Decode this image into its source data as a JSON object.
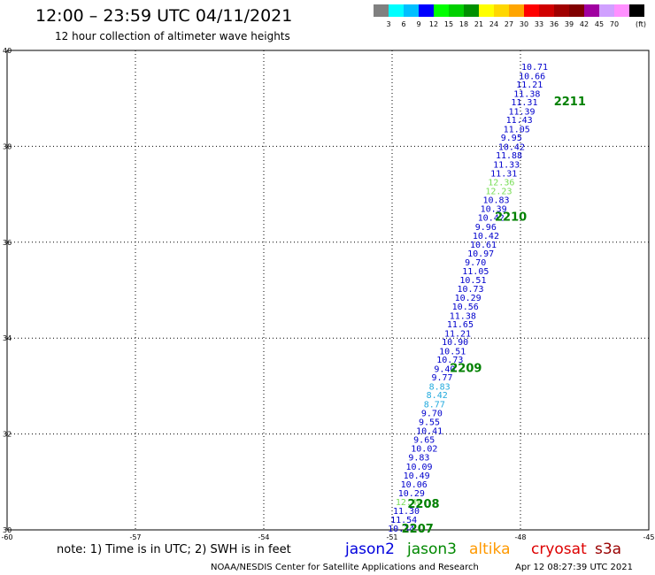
{
  "header": {
    "title": "12:00 – 23:59 UTC 04/11/2021",
    "subtitle": "12 hour collection of altimeter wave heights"
  },
  "colorbar": {
    "colors": [
      "#808080",
      "#00ffff",
      "#00bfff",
      "#0000ff",
      "#00ff00",
      "#00d000",
      "#009000",
      "#ffff00",
      "#ffd700",
      "#ffa500",
      "#ff0000",
      "#d00000",
      "#a00000",
      "#800000",
      "#a000a0",
      "#d0a0ff",
      "#ff90ff",
      "#000000"
    ],
    "labels": [
      "3",
      "6",
      "9",
      "12",
      "15",
      "18",
      "21",
      "24",
      "27",
      "30",
      "33",
      "36",
      "39",
      "42",
      "45",
      "70"
    ],
    "unit": "(ft)"
  },
  "chart_data": {
    "type": "scatter",
    "title": "12:00 – 23:59 UTC 04/11/2021",
    "subtitle": "12 hour collection of altimeter wave heights",
    "xlim": [
      -60,
      -45
    ],
    "ylim": [
      30,
      40
    ],
    "xticks": [
      "-60",
      "-57",
      "-54",
      "-51",
      "-48",
      "-45"
    ],
    "yticks": [
      "30",
      "32",
      "34",
      "36",
      "38",
      "40"
    ],
    "grid": true,
    "points": [
      {
        "lon": -51.1,
        "lat": 30.02,
        "value": "10.34",
        "color": "#0000cc"
      },
      {
        "lon": -51.04,
        "lat": 30.2,
        "value": "11.54",
        "color": "#0000cc"
      },
      {
        "lon": -50.98,
        "lat": 30.39,
        "value": "11.30",
        "color": "#0000cc"
      },
      {
        "lon": -50.92,
        "lat": 30.57,
        "value": "12.40",
        "color": "#77dd55"
      },
      {
        "lon": -50.86,
        "lat": 30.76,
        "value": "10.29",
        "color": "#0000cc"
      },
      {
        "lon": -50.8,
        "lat": 30.94,
        "value": "10.06",
        "color": "#0000cc"
      },
      {
        "lon": -50.74,
        "lat": 31.13,
        "value": "10.49",
        "color": "#0000cc"
      },
      {
        "lon": -50.68,
        "lat": 31.31,
        "value": "10.09",
        "color": "#0000cc"
      },
      {
        "lon": -50.62,
        "lat": 31.5,
        "value": "9.83",
        "color": "#0000cc"
      },
      {
        "lon": -50.56,
        "lat": 31.69,
        "value": "10.02",
        "color": "#0000cc"
      },
      {
        "lon": -50.5,
        "lat": 31.87,
        "value": "9.65",
        "color": "#0000cc"
      },
      {
        "lon": -50.44,
        "lat": 32.06,
        "value": "10.41",
        "color": "#0000cc"
      },
      {
        "lon": -50.38,
        "lat": 32.24,
        "value": "9.55",
        "color": "#0000cc"
      },
      {
        "lon": -50.32,
        "lat": 32.43,
        "value": "9.70",
        "color": "#0000cc"
      },
      {
        "lon": -50.26,
        "lat": 32.61,
        "value": "8.77",
        "color": "#22aadd"
      },
      {
        "lon": -50.2,
        "lat": 32.8,
        "value": "8.42",
        "color": "#22aadd"
      },
      {
        "lon": -50.14,
        "lat": 32.98,
        "value": "8.83",
        "color": "#22aadd"
      },
      {
        "lon": -50.08,
        "lat": 33.17,
        "value": "9.77",
        "color": "#0000cc"
      },
      {
        "lon": -50.02,
        "lat": 33.35,
        "value": "9.40",
        "color": "#0000cc"
      },
      {
        "lon": -49.96,
        "lat": 33.54,
        "value": "10.73",
        "color": "#0000cc"
      },
      {
        "lon": -49.9,
        "lat": 33.72,
        "value": "10.51",
        "color": "#0000cc"
      },
      {
        "lon": -49.84,
        "lat": 33.91,
        "value": "10.90",
        "color": "#0000cc"
      },
      {
        "lon": -49.78,
        "lat": 34.09,
        "value": "11.21",
        "color": "#0000cc"
      },
      {
        "lon": -49.72,
        "lat": 34.28,
        "value": "11.65",
        "color": "#0000cc"
      },
      {
        "lon": -49.66,
        "lat": 34.46,
        "value": "11.38",
        "color": "#0000cc"
      },
      {
        "lon": -49.6,
        "lat": 34.65,
        "value": "10.56",
        "color": "#0000cc"
      },
      {
        "lon": -49.54,
        "lat": 34.83,
        "value": "10.29",
        "color": "#0000cc"
      },
      {
        "lon": -49.48,
        "lat": 35.02,
        "value": "10.73",
        "color": "#0000cc"
      },
      {
        "lon": -49.42,
        "lat": 35.2,
        "value": "10.51",
        "color": "#0000cc"
      },
      {
        "lon": -49.36,
        "lat": 35.39,
        "value": "11.05",
        "color": "#0000cc"
      },
      {
        "lon": -49.3,
        "lat": 35.57,
        "value": "9.70",
        "color": "#0000cc"
      },
      {
        "lon": -49.24,
        "lat": 35.76,
        "value": "10.97",
        "color": "#0000cc"
      },
      {
        "lon": -49.18,
        "lat": 35.94,
        "value": "10.61",
        "color": "#0000cc"
      },
      {
        "lon": -49.12,
        "lat": 36.13,
        "value": "10.42",
        "color": "#0000cc"
      },
      {
        "lon": -49.06,
        "lat": 36.31,
        "value": "9.96",
        "color": "#0000cc"
      },
      {
        "lon": -49.0,
        "lat": 36.5,
        "value": "10.42",
        "color": "#0000cc"
      },
      {
        "lon": -48.94,
        "lat": 36.69,
        "value": "10.39",
        "color": "#0000cc"
      },
      {
        "lon": -48.88,
        "lat": 36.87,
        "value": "10.83",
        "color": "#0000cc"
      },
      {
        "lon": -48.82,
        "lat": 37.06,
        "value": "12.23",
        "color": "#77dd55"
      },
      {
        "lon": -48.76,
        "lat": 37.24,
        "value": "12.36",
        "color": "#77dd55"
      },
      {
        "lon": -48.7,
        "lat": 37.43,
        "value": "11.31",
        "color": "#0000cc"
      },
      {
        "lon": -48.64,
        "lat": 37.61,
        "value": "11.33",
        "color": "#0000cc"
      },
      {
        "lon": -48.58,
        "lat": 37.8,
        "value": "11.88",
        "color": "#0000cc"
      },
      {
        "lon": -48.52,
        "lat": 37.98,
        "value": "10.42",
        "color": "#0000cc"
      },
      {
        "lon": -48.46,
        "lat": 38.17,
        "value": "9.95",
        "color": "#0000cc"
      },
      {
        "lon": -48.4,
        "lat": 38.35,
        "value": "11.05",
        "color": "#0000cc"
      },
      {
        "lon": -48.34,
        "lat": 38.54,
        "value": "11.43",
        "color": "#0000cc"
      },
      {
        "lon": -48.28,
        "lat": 38.72,
        "value": "11.39",
        "color": "#0000cc"
      },
      {
        "lon": -48.22,
        "lat": 38.91,
        "value": "11.31",
        "color": "#0000cc"
      },
      {
        "lon": -48.16,
        "lat": 39.09,
        "value": "11.38",
        "color": "#0000cc"
      },
      {
        "lon": -48.1,
        "lat": 39.28,
        "value": "11.21",
        "color": "#0000cc"
      },
      {
        "lon": -48.04,
        "lat": 39.46,
        "value": "10.66",
        "color": "#0000cc"
      },
      {
        "lon": -47.98,
        "lat": 39.65,
        "value": "10.71",
        "color": "#0000cc"
      }
    ],
    "annotations": [
      {
        "text": "2207",
        "lon": -50.78,
        "lat": 30.0
      },
      {
        "text": "2208",
        "lon": -50.64,
        "lat": 30.52
      },
      {
        "text": "2209",
        "lon": -49.65,
        "lat": 33.35
      },
      {
        "text": "2210",
        "lon": -48.6,
        "lat": 36.5
      },
      {
        "text": "2211",
        "lon": -47.22,
        "lat": 38.91
      }
    ]
  },
  "footer": {
    "note": "note: 1) Time is in UTC; 2) SWH is in feet",
    "satellites": [
      {
        "name": "jason2",
        "color": "#0000dd"
      },
      {
        "name": "jason3",
        "color": "#008800"
      },
      {
        "name": "altika",
        "color": "#ff9900"
      },
      {
        "name": "cryosat",
        "color": "#dd0000"
      },
      {
        "name": "s3a",
        "color": "#990000"
      }
    ],
    "credit": "NOAA/NESDIS Center for Satellite Applications and Research",
    "timestamp": "Apr 12 08:27:39 UTC 2021"
  }
}
